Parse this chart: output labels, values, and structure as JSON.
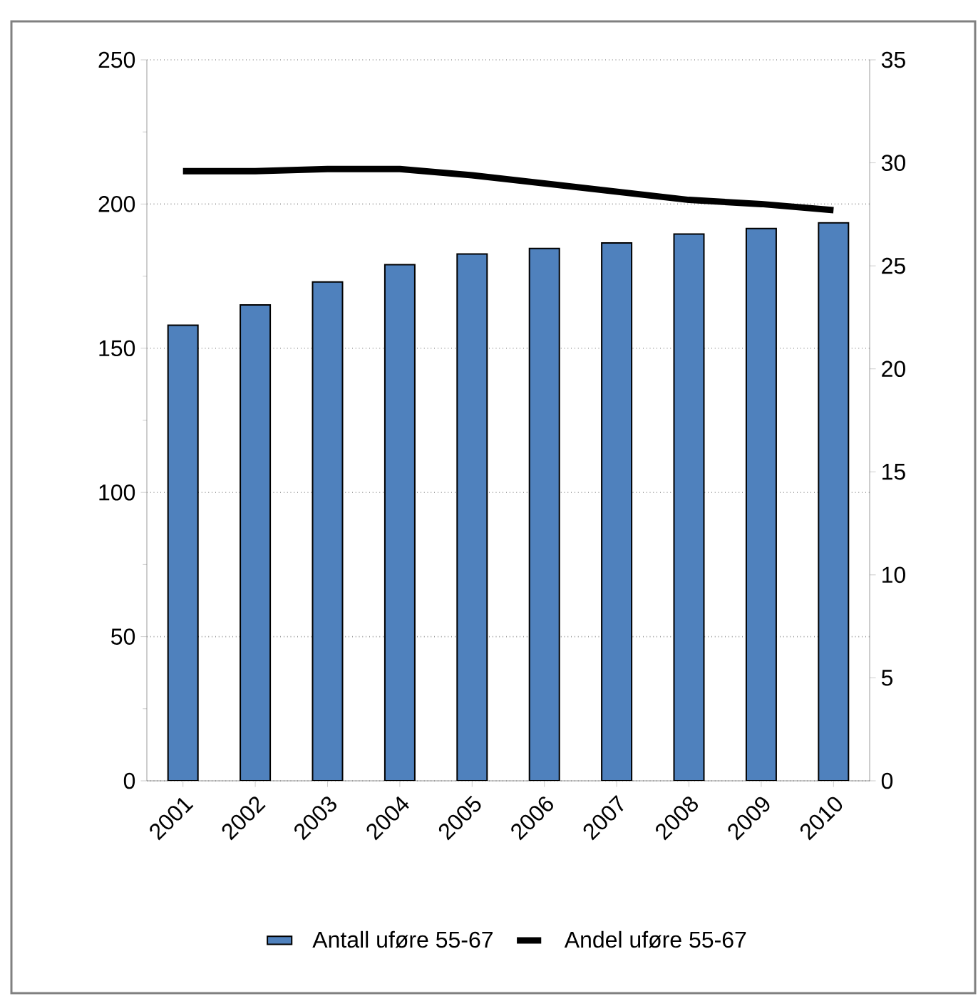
{
  "chart_data": {
    "type": "bar",
    "categories": [
      "2001",
      "2002",
      "2003",
      "2004",
      "2005",
      "2006",
      "2007",
      "2008",
      "2009",
      "2010"
    ],
    "series": [
      {
        "name": "Antall uføre 55-67",
        "color": "#4f81bd",
        "values": [
          158,
          165,
          173,
          179,
          182.7,
          184.6,
          186.5,
          189.6,
          191.5,
          193.5
        ]
      },
      {
        "name": "Andel uføre 55-67",
        "type": "line",
        "axis": "y2",
        "color": "#000000",
        "values": [
          29.6,
          29.6,
          29.7,
          29.7,
          29.4,
          29.0,
          28.6,
          28.2,
          28.0,
          27.7
        ]
      }
    ],
    "ylim": [
      0,
      250
    ],
    "yticks": [
      0,
      50,
      100,
      150,
      200,
      250
    ],
    "y2lim": [
      0,
      35
    ],
    "y2ticks": [
      0,
      5,
      10,
      15,
      20,
      25,
      30,
      35
    ],
    "grid": "y",
    "legend": "bottom"
  }
}
